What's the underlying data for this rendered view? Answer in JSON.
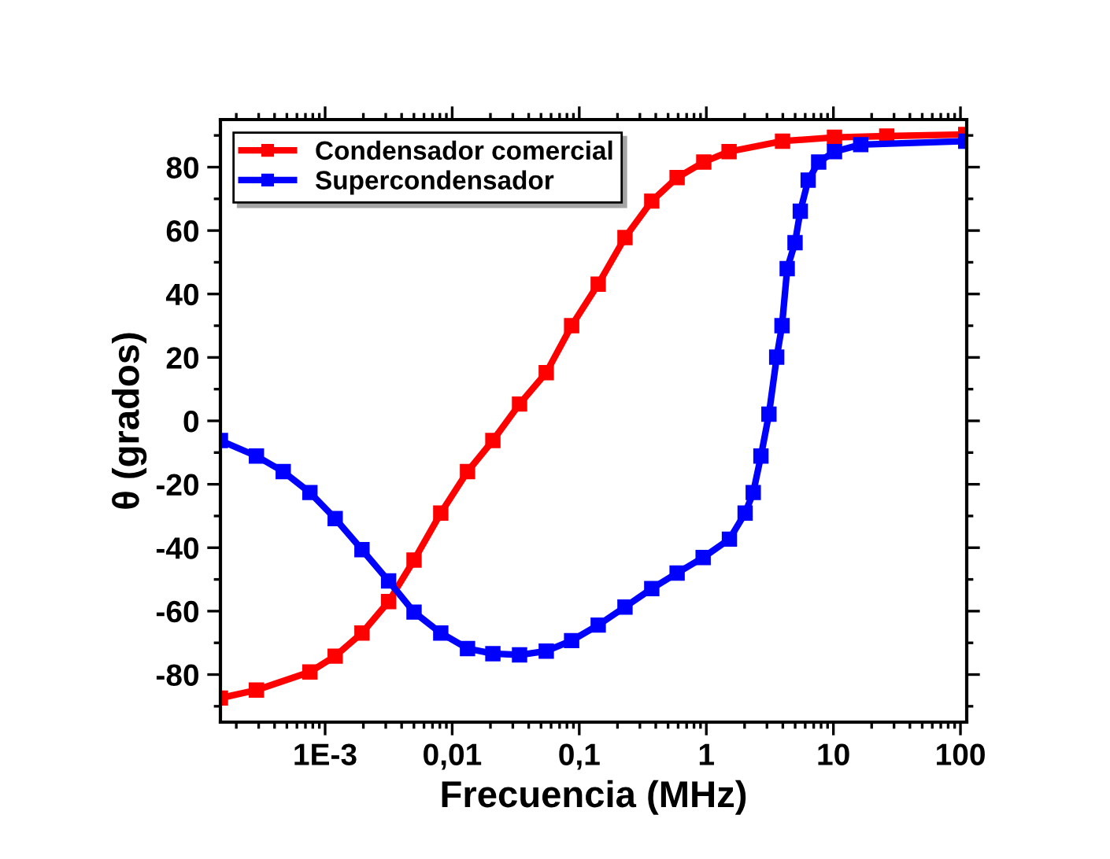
{
  "chart_data": {
    "type": "line",
    "xlabel": "Frecuencia (MHz)",
    "ylabel": "θ (grados)",
    "log": "x",
    "xlim": [
      0.00015,
      112
    ],
    "ylim": [
      -95,
      95
    ],
    "xticks": [
      {
        "value": 0.001,
        "label": "1E-3"
      },
      {
        "value": 0.01,
        "label": "0,01"
      },
      {
        "value": 0.1,
        "label": "0,1"
      },
      1,
      10,
      100
    ],
    "yticks": [
      -80,
      -60,
      -40,
      -20,
      0,
      20,
      40,
      60,
      80
    ],
    "grid": false,
    "legend": "top left",
    "marker": "square",
    "line_style": "solid",
    "series": [
      {
        "name": "Condensador comercial",
        "color": "#ff0000",
        "x": [
          0.00015,
          0.000288,
          0.000759,
          0.0012,
          0.00195,
          0.00316,
          0.00501,
          0.00813,
          0.0132,
          0.0209,
          0.0339,
          0.055,
          0.0871,
          0.141,
          0.229,
          0.372,
          0.589,
          0.955,
          1.51,
          3.98,
          10.2,
          26.3,
          110
        ],
        "values": [
          -87.4,
          -84.9,
          -79.2,
          -74.2,
          -66.9,
          -57.0,
          -43.9,
          -29.1,
          -16.0,
          -6.2,
          5.3,
          15.2,
          30.0,
          43.1,
          57.8,
          69.3,
          76.7,
          81.6,
          84.9,
          88.2,
          89.4,
          89.8,
          90.3
        ]
      },
      {
        "name": "Supercondensador",
        "color": "#0000ff",
        "x": [
          0.00015,
          0.000288,
          0.000468,
          0.000759,
          0.0012,
          0.00195,
          0.00316,
          0.00501,
          0.00813,
          0.0132,
          0.0209,
          0.0339,
          0.055,
          0.0871,
          0.141,
          0.229,
          0.372,
          0.589,
          0.944,
          1.52,
          2.02,
          2.34,
          2.69,
          3.11,
          3.58,
          3.94,
          4.33,
          4.99,
          5.49,
          6.33,
          7.66,
          10.2,
          16.4,
          110
        ],
        "values": [
          -6.2,
          -11.1,
          -16.0,
          -22.6,
          -30.8,
          -40.6,
          -50.5,
          -60.3,
          -66.9,
          -71.8,
          -73.4,
          -73.8,
          -72.6,
          -69.3,
          -64.4,
          -58.7,
          -52.9,
          -48.0,
          -43.1,
          -37.3,
          -29.1,
          -22.6,
          -11.1,
          2.1,
          20.1,
          30.0,
          48.0,
          56.2,
          66.1,
          75.9,
          81.6,
          84.9,
          87.1,
          88.2
        ]
      }
    ]
  }
}
